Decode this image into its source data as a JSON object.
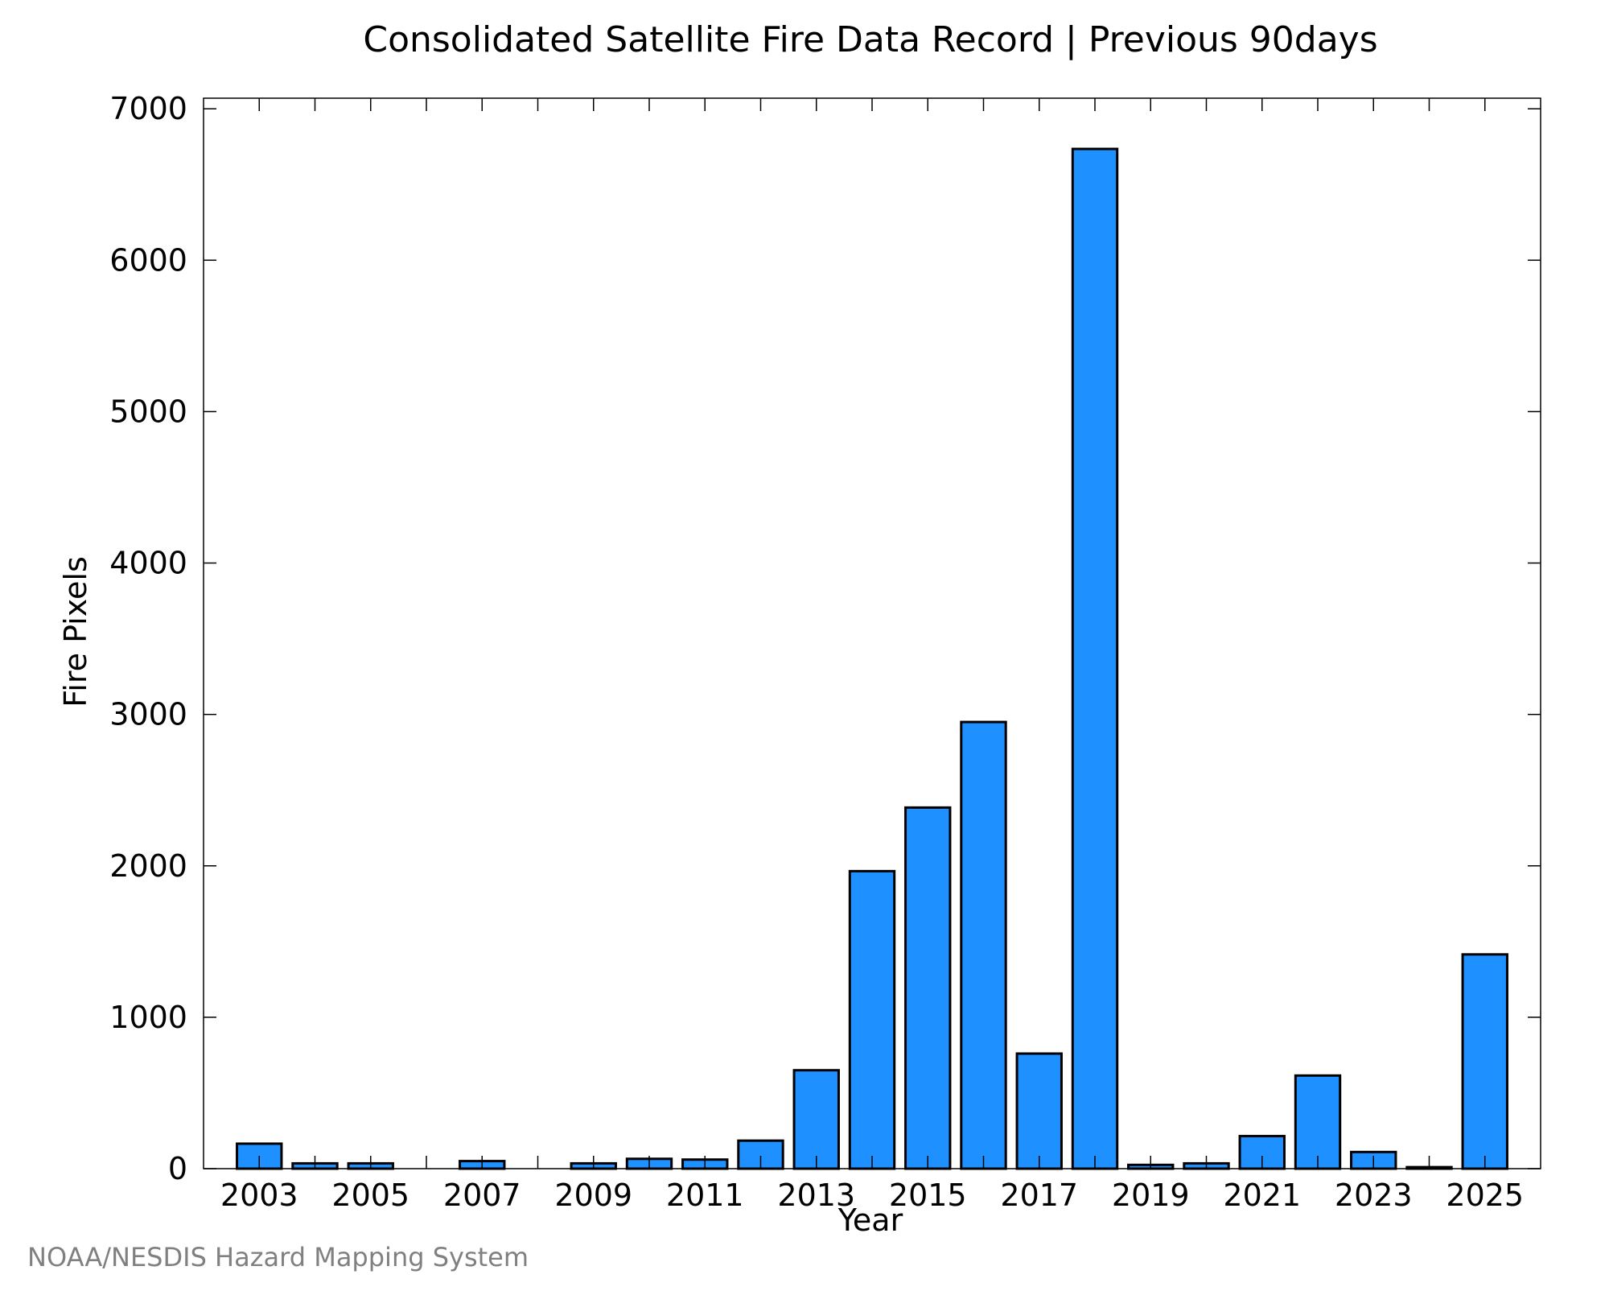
{
  "chart_data": {
    "type": "bar",
    "title": "Consolidated Satellite Fire Data Record | Previous 90days",
    "xlabel": "Year",
    "ylabel": "Fire Pixels",
    "credit": "NOAA/NESDIS Hazard Mapping System",
    "categories": [
      "2003",
      "2004",
      "2005",
      "2006",
      "2007",
      "2008",
      "2009",
      "2010",
      "2011",
      "2012",
      "2013",
      "2014",
      "2015",
      "2016",
      "2017",
      "2018",
      "2019",
      "2020",
      "2021",
      "2022",
      "2023",
      "2024",
      "2025"
    ],
    "values": [
      165,
      35,
      35,
      0,
      50,
      0,
      35,
      65,
      60,
      185,
      650,
      1965,
      2385,
      2950,
      760,
      6735,
      25,
      35,
      215,
      615,
      110,
      10,
      1415
    ],
    "x_tick_labels": [
      "2003",
      "2005",
      "2007",
      "2009",
      "2011",
      "2013",
      "2015",
      "2017",
      "2019",
      "2021",
      "2023",
      "2025"
    ],
    "y_ticks": [
      0,
      1000,
      2000,
      3000,
      4000,
      5000,
      6000,
      7000
    ],
    "ylim": [
      0,
      7070
    ],
    "grid": false,
    "legend": "none",
    "colors": {
      "bar_fill": "#1E90FF",
      "bar_stroke": "#000000",
      "text": "#000000",
      "credit_text": "#808080"
    }
  }
}
